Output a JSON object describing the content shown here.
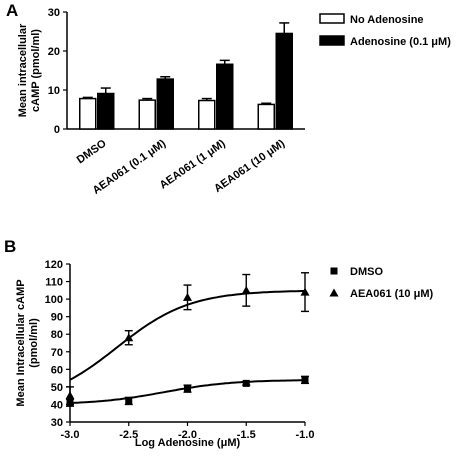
{
  "chart_data": [
    {
      "panel": "A",
      "type": "bar",
      "title": "",
      "xlabel": "",
      "ylabel": [
        "Mean intracellular",
        "cAMP (pmol/ml)"
      ],
      "ylim": [
        0,
        30
      ],
      "yticks": [
        0,
        10,
        20,
        30
      ],
      "categories": [
        "DMSO",
        "AEA061 (0.1 μM)",
        "AEA061 (1 μM)",
        "AEA061 (10 μM)"
      ],
      "series": [
        {
          "name": "No Adenosine",
          "fill": "#ffffff",
          "values": [
            7.8,
            7.4,
            7.3,
            6.3
          ],
          "errors": [
            0.3,
            0.4,
            0.5,
            0.3
          ]
        },
        {
          "name": "Adenosine (0.1 μM)",
          "fill": "#000000",
          "values": [
            9.1,
            12.8,
            16.6,
            24.5
          ],
          "errors": [
            1.4,
            0.6,
            1.0,
            2.7
          ]
        }
      ],
      "legend_position": "top-right",
      "grid": false
    },
    {
      "panel": "B",
      "type": "line",
      "title": "",
      "xlabel": "Log Adenosine (μM)",
      "ylabel": [
        "Mean Intracellular cAMP",
        "(pmol/ml)"
      ],
      "xlim": [
        -3.0,
        -1.0
      ],
      "xticks": [
        -3.0,
        -2.5,
        -2.0,
        -1.5,
        -1.0
      ],
      "xtick_labels": [
        "-3.0",
        "-2.5",
        "-2.0",
        "-1.5",
        "-1.0"
      ],
      "ylim": [
        30,
        120
      ],
      "yticks": [
        30,
        40,
        50,
        60,
        70,
        80,
        90,
        100,
        110,
        120
      ],
      "series": [
        {
          "name": "DMSO",
          "marker": "square",
          "x": [
            -3.0,
            -2.5,
            -2.0,
            -1.5,
            -1.0
          ],
          "y": [
            41,
            42,
            49,
            52,
            54
          ],
          "errors": [
            2,
            2,
            2,
            1,
            2
          ],
          "fit": {
            "bottom": 40,
            "top": 54,
            "log_ec50": -2.2,
            "hill": 1.5
          }
        },
        {
          "name": "AEA061 (10 μM)",
          "marker": "triangle",
          "x": [
            -3.0,
            -2.5,
            -2.0,
            -1.5,
            -1.0
          ],
          "y": [
            45,
            78,
            101,
            105,
            104
          ],
          "errors": [
            5,
            4,
            7,
            9,
            11
          ],
          "fit": {
            "bottom": 40,
            "top": 105,
            "log_ec50": -2.6,
            "hill": 1.4
          }
        }
      ],
      "legend_position": "right",
      "grid": false
    }
  ]
}
